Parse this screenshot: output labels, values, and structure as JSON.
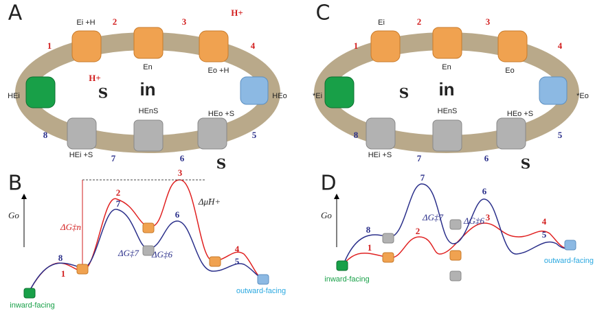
{
  "panels": [
    {
      "label": "A",
      "center": "in",
      "steps": [
        "1",
        "2",
        "3",
        "4",
        "5",
        "6",
        "7",
        "8"
      ],
      "states": [
        "Ei +H",
        "En",
        "Eo +H",
        "HEi",
        "HEo",
        "HEi +S",
        "HEnS",
        "HEo +S"
      ],
      "protons": [
        "H+",
        "H+"
      ],
      "substrates": [
        "S",
        "S"
      ]
    },
    {
      "label": "B",
      "axis": "Go",
      "steps": [
        "1",
        "2",
        "3",
        "4",
        "5",
        "6",
        "7",
        "8"
      ],
      "barriers": [
        "ΔG‡n",
        "ΔG‡7",
        "ΔG‡6",
        "Δμ̃H+"
      ],
      "ends": [
        "inward-facing",
        "outward-facing"
      ]
    },
    {
      "label": "C",
      "center": "in",
      "steps": [
        "1",
        "2",
        "3",
        "4",
        "5",
        "6",
        "7",
        "8"
      ],
      "states": [
        "Ei",
        "En",
        "Eo",
        "*Ei",
        "*Eo",
        "HEi +S",
        "HEnS",
        "HEo +S"
      ],
      "substrates": [
        "S",
        "S"
      ]
    },
    {
      "label": "D",
      "axis": "Go",
      "steps": [
        "1",
        "2",
        "3",
        "4",
        "5",
        "6",
        "7",
        "8"
      ],
      "barriers": [
        "ΔG‡7",
        "ΔG‡6"
      ],
      "ends": [
        "inward-facing",
        "outward-facing"
      ]
    }
  ]
}
